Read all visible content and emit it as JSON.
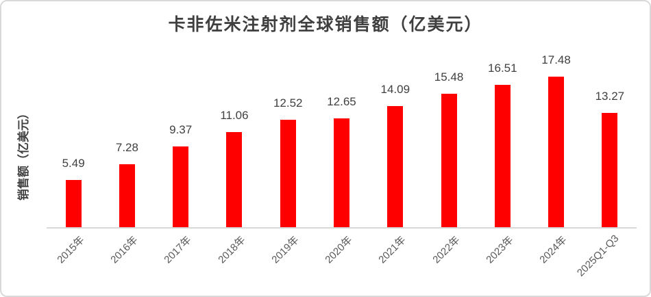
{
  "chart_data": {
    "type": "bar",
    "title": "卡非佐米注射剂全球销售额（亿美元）",
    "ylabel": "销售额（亿美元）",
    "xlabel": "",
    "categories": [
      "2015年",
      "2016年",
      "2017年",
      "2018年",
      "2019年",
      "2020年",
      "2021年",
      "2022年",
      "2023年",
      "2024年",
      "2025Q1-Q3"
    ],
    "values": [
      5.49,
      7.28,
      9.37,
      11.06,
      12.52,
      12.65,
      14.09,
      15.48,
      16.51,
      17.48,
      13.27
    ],
    "data_labels": [
      "5.49",
      "7.28",
      "9.37",
      "11.06",
      "12.52",
      "12.65",
      "14.09",
      "15.48",
      "16.51",
      "17.48",
      "13.27"
    ],
    "ylim": [
      0,
      21.5
    ],
    "grid": false,
    "legend": false,
    "colors": {
      "bar": "#ff0000",
      "axis_line": "#d9d9d9",
      "value_label": "#404040",
      "tick_label": "#595959",
      "title": "#3f3f3f"
    }
  }
}
